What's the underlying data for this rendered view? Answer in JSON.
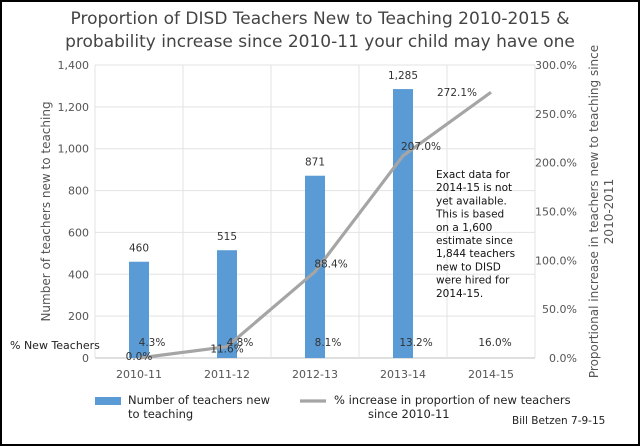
{
  "chart_data": {
    "type": "bar",
    "title_lines": [
      "Proportion of DISD Teachers New to Teaching 2010-2015 &",
      "probability increase since 2010-11 your child may have one"
    ],
    "categories": [
      "2010-11",
      "2011-12",
      "2012-13",
      "2013-14",
      "2014-15"
    ],
    "ylabel_left": "Number of teachers new to teaching",
    "ylabel_right_lines": [
      "Proportional increase in teachers new to teaching  since",
      "2010-2011"
    ],
    "ylim_left": [
      0,
      1400
    ],
    "yticks_left": [
      0,
      200,
      400,
      600,
      800,
      1000,
      1200,
      1400
    ],
    "yticks_left_labels": [
      "0",
      "200",
      "400",
      "600",
      "800",
      "1,000",
      "1,200",
      "1,400"
    ],
    "ylim_right": [
      0,
      300
    ],
    "yticks_right": [
      0,
      50,
      100,
      150,
      200,
      250,
      300
    ],
    "yticks_right_labels": [
      "0.0%",
      "50.0%",
      "100.0%",
      "150.0%",
      "200.0%",
      "250.0%",
      "300.0%"
    ],
    "series": [
      {
        "name": "Number of teachers new to teaching",
        "type": "bar",
        "axis": "left",
        "color": "#5b9bd5",
        "values": [
          460,
          515,
          871,
          1285,
          null
        ],
        "labels": [
          "460",
          "515",
          "871",
          "1,285",
          ""
        ]
      },
      {
        "name": "% increase in proportion of new teachers since 2010-11",
        "type": "line",
        "axis": "right",
        "color": "#a5a5a5",
        "values": [
          0.0,
          11.6,
          88.4,
          207.0,
          272.1
        ],
        "labels": [
          "0.0%",
          "11.6%",
          "88.4%",
          "207.0%",
          "272.1%"
        ]
      }
    ],
    "pct_new_teachers": {
      "label": "% New Teachers",
      "values": [
        "4.3%",
        "4.8%",
        "8.1%",
        "13.2%",
        "16.0%"
      ]
    },
    "annotation_lines": [
      "Exact data for",
      "2014-15 is not",
      "yet available.",
      "This is based",
      "on a 1,600",
      "estimate since",
      "1,844 teachers",
      "new to DISD",
      "were hired for",
      "2014-15."
    ],
    "legend": {
      "bar_lines": [
        "Number of teachers new",
        "to teaching"
      ],
      "line_lines": [
        "% increase in proportion of new teachers",
        "since 2010-11"
      ]
    },
    "credit": "Bill Betzen 7-9-15",
    "grid": true
  }
}
